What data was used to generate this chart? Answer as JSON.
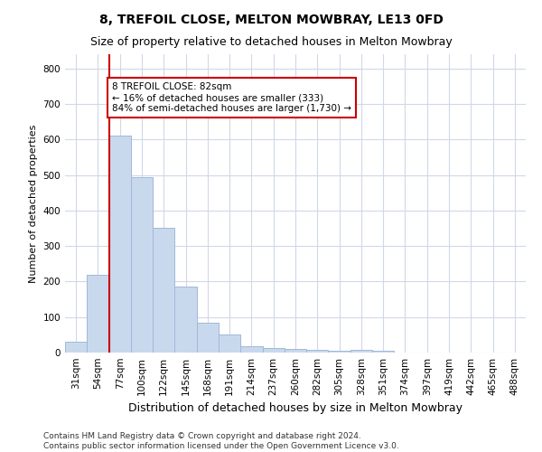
{
  "title": "8, TREFOIL CLOSE, MELTON MOWBRAY, LE13 0FD",
  "subtitle": "Size of property relative to detached houses in Melton Mowbray",
  "xlabel": "Distribution of detached houses by size in Melton Mowbray",
  "ylabel": "Number of detached properties",
  "footnote": "Contains HM Land Registry data © Crown copyright and database right 2024.\nContains public sector information licensed under the Open Government Licence v3.0.",
  "categories": [
    "31sqm",
    "54sqm",
    "77sqm",
    "100sqm",
    "122sqm",
    "145sqm",
    "168sqm",
    "191sqm",
    "214sqm",
    "237sqm",
    "260sqm",
    "282sqm",
    "305sqm",
    "328sqm",
    "351sqm",
    "374sqm",
    "397sqm",
    "419sqm",
    "442sqm",
    "465sqm",
    "488sqm"
  ],
  "values": [
    30,
    218,
    612,
    493,
    350,
    187,
    83,
    50,
    17,
    13,
    9,
    7,
    5,
    7,
    5,
    0,
    0,
    0,
    0,
    0,
    0
  ],
  "bar_color": "#c9d9ed",
  "bar_edge_color": "#a0b8d8",
  "red_line_index": 2,
  "red_line_color": "#cc0000",
  "annotation_text": "8 TREFOIL CLOSE: 82sqm\n← 16% of detached houses are smaller (333)\n84% of semi-detached houses are larger (1,730) →",
  "annotation_box_color": "#ffffff",
  "annotation_box_edge": "#cc0000",
  "ylim": [
    0,
    840
  ],
  "yticks": [
    0,
    100,
    200,
    300,
    400,
    500,
    600,
    700,
    800
  ],
  "title_fontsize": 10,
  "subtitle_fontsize": 9,
  "xlabel_fontsize": 9,
  "ylabel_fontsize": 8,
  "tick_fontsize": 7.5,
  "footnote_fontsize": 6.5,
  "bg_color": "#ffffff",
  "grid_color": "#d0d8e8"
}
